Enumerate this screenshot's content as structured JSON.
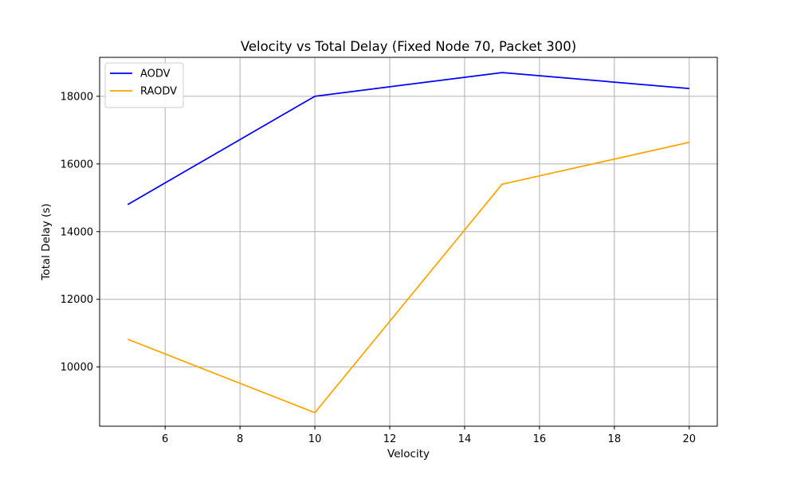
{
  "chart_data": {
    "type": "line",
    "title": "Velocity vs Total Delay (Fixed Node 70, Packet 300)",
    "xlabel": "Velocity",
    "ylabel": "Total Delay (s)",
    "x": [
      5,
      10,
      15,
      20
    ],
    "xlim": [
      4.25,
      20.75
    ],
    "ylim": [
      8250,
      19150
    ],
    "xticks": [
      6,
      8,
      10,
      12,
      14,
      16,
      18,
      20
    ],
    "yticks": [
      10000,
      12000,
      14000,
      16000,
      18000
    ],
    "grid": true,
    "legend_position": "top-left",
    "series": [
      {
        "name": "AODV",
        "color": "#0000ff",
        "values": [
          14800,
          18000,
          18700,
          18230
        ]
      },
      {
        "name": "RAODV",
        "color": "#ffa500",
        "values": [
          10820,
          8650,
          15400,
          16640
        ]
      }
    ]
  }
}
